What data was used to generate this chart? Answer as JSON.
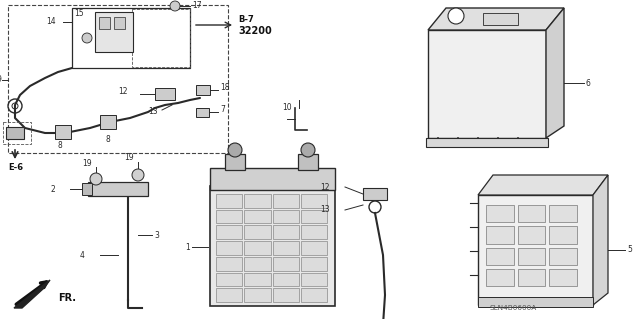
{
  "bg_color": "#ffffff",
  "lc": "#2a2a2a",
  "lc_light": "#555555",
  "fs": 5.5,
  "footer": "SLN4B0600A",
  "fig_w": 6.4,
  "fig_h": 3.19,
  "dpi": 100
}
